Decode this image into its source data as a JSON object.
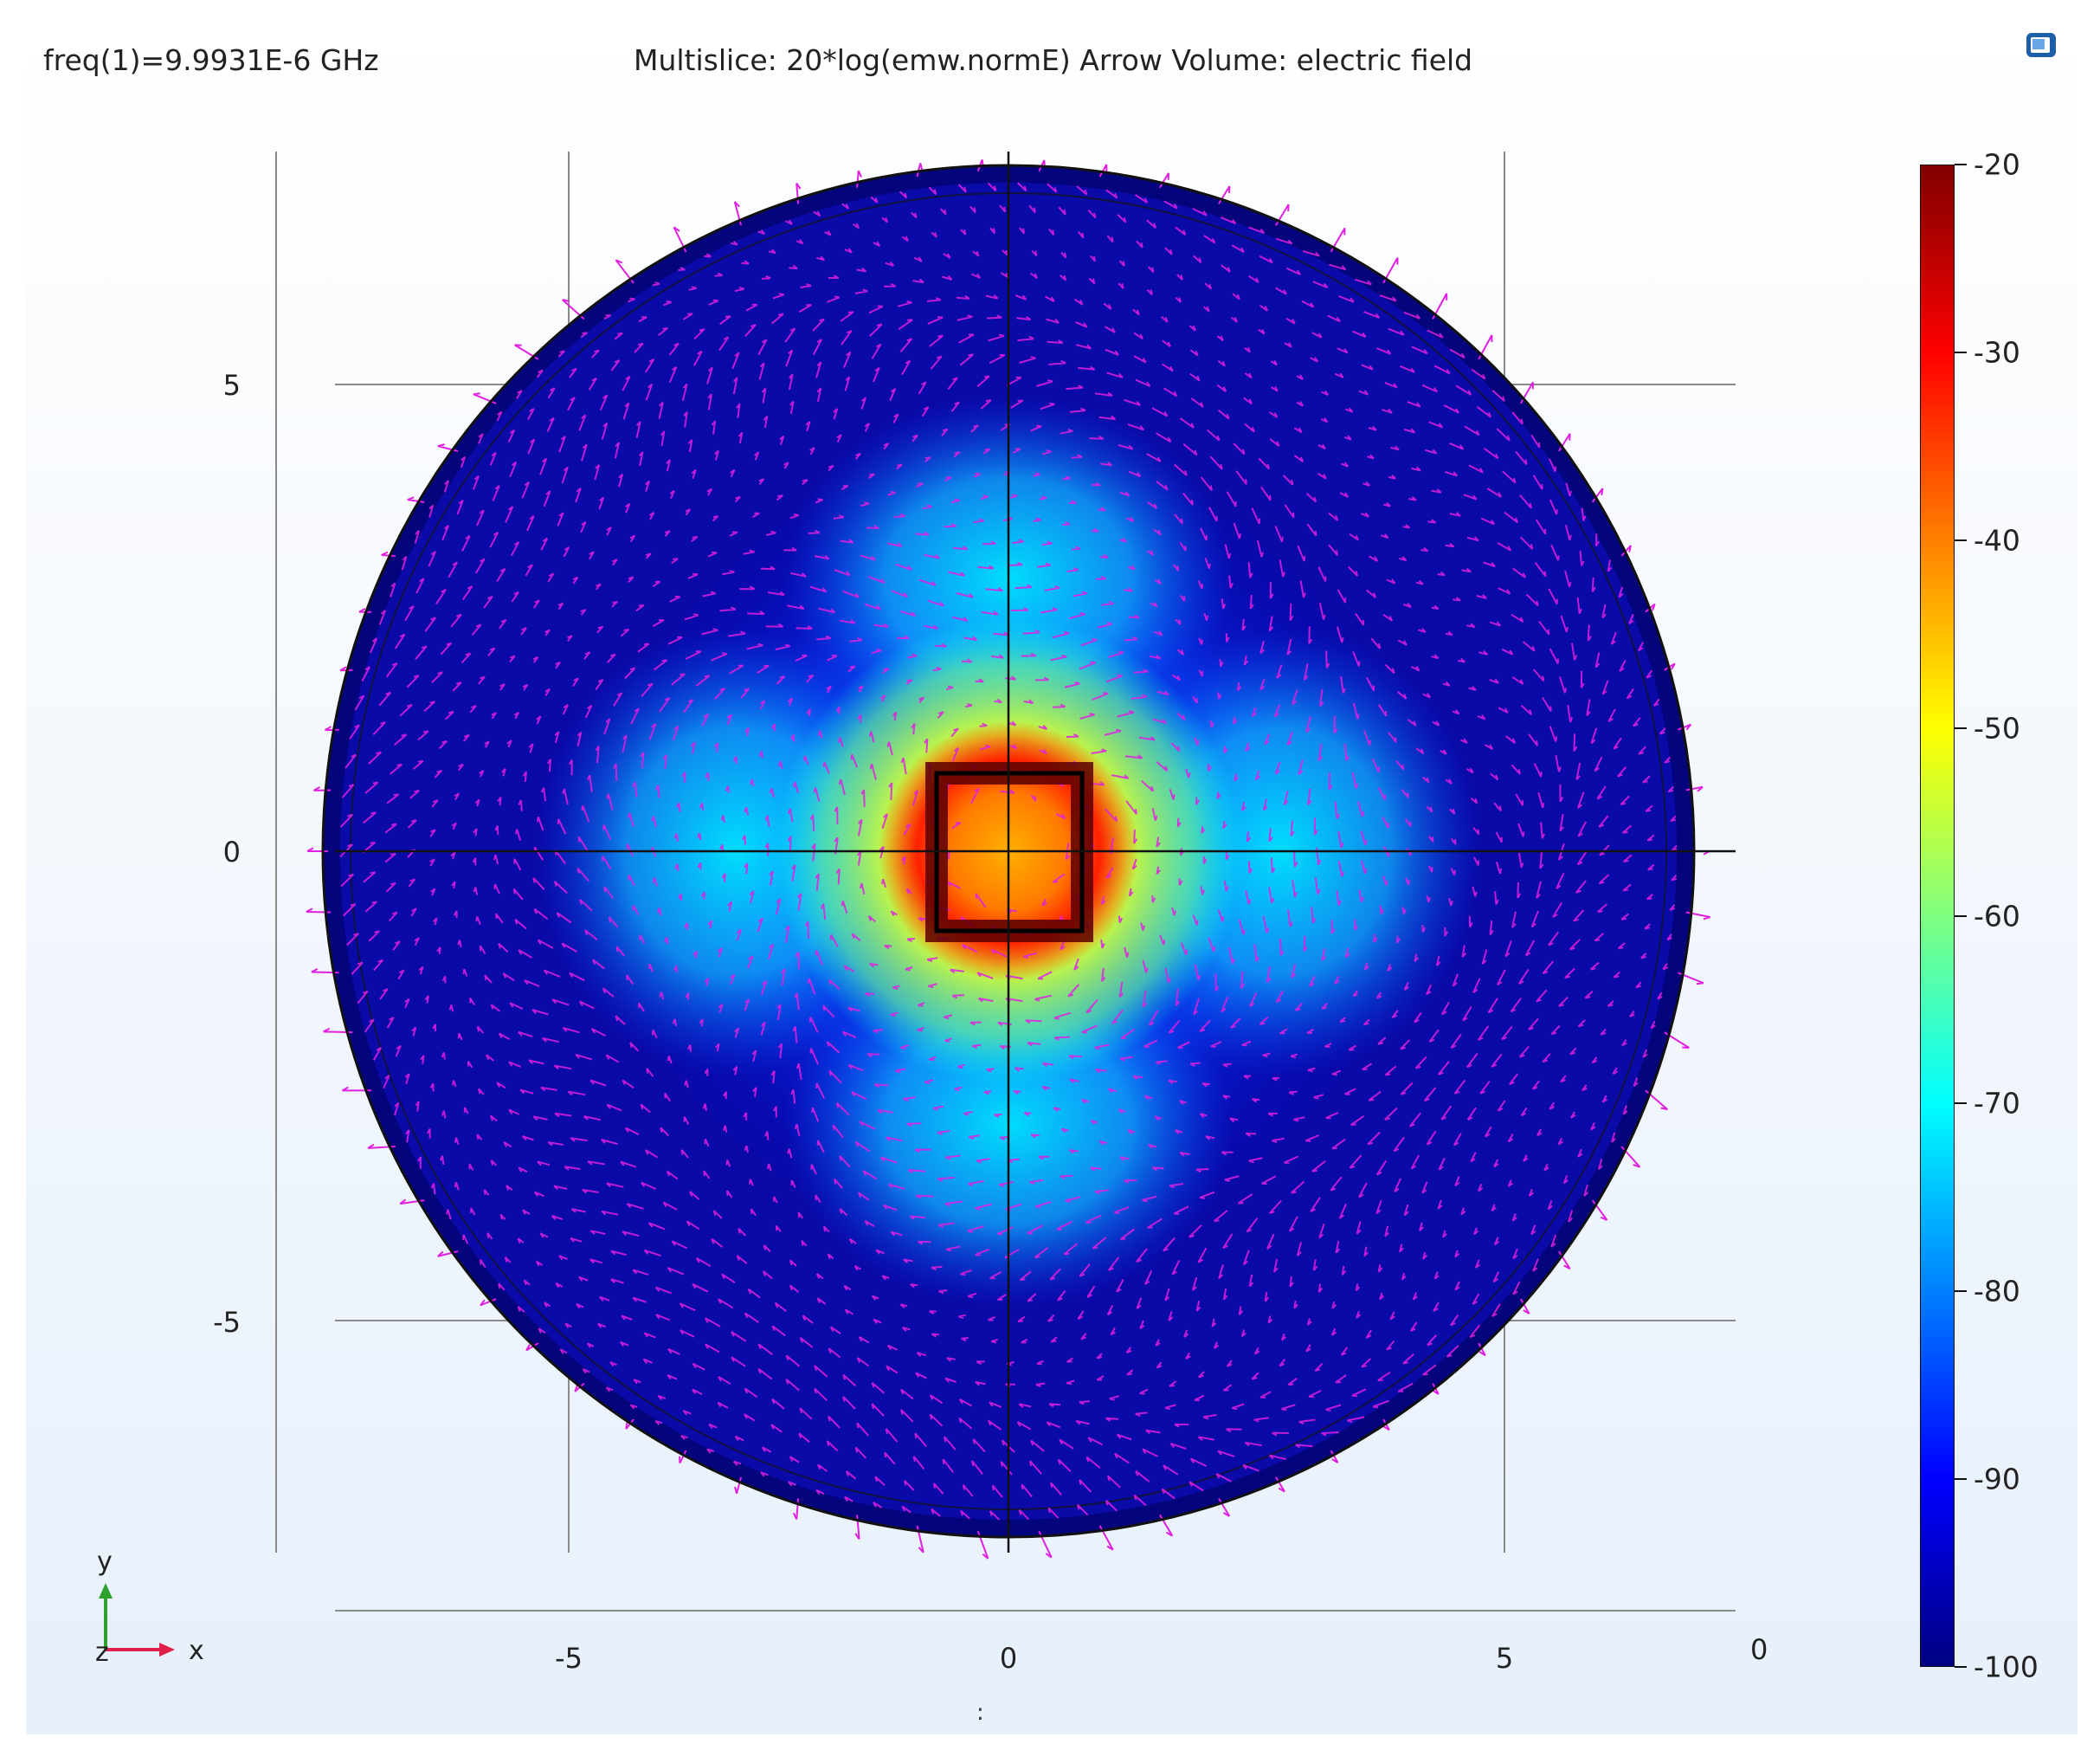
{
  "header": {
    "frequency_label": "freq(1)=9.9931E-6 GHz",
    "plot_title": "Multislice: 20*log(emw.normE)  Arrow Volume: electric field"
  },
  "toolbar": {
    "camera_icon": "camera-view-icon"
  },
  "axes": {
    "x_ticks": [
      "-5",
      "0",
      "5"
    ],
    "y_ticks": [
      "5",
      "0",
      "-5"
    ],
    "corner_label": "0",
    "triad": {
      "x": "x",
      "y": "y",
      "z": "z"
    }
  },
  "colorbar": {
    "labels": [
      "-20",
      "-30",
      "-40",
      "-50",
      "-60",
      "-70",
      "-80",
      "-90",
      "-100"
    ],
    "colors": [
      "#800000",
      "#ff0000",
      "#ff8000",
      "#ffff00",
      "#80ff80",
      "#00ffff",
      "#0080ff",
      "#0000ff",
      "#000080"
    ]
  },
  "arrow_color": "#e020e0",
  "status": {
    "dots": ":"
  }
}
